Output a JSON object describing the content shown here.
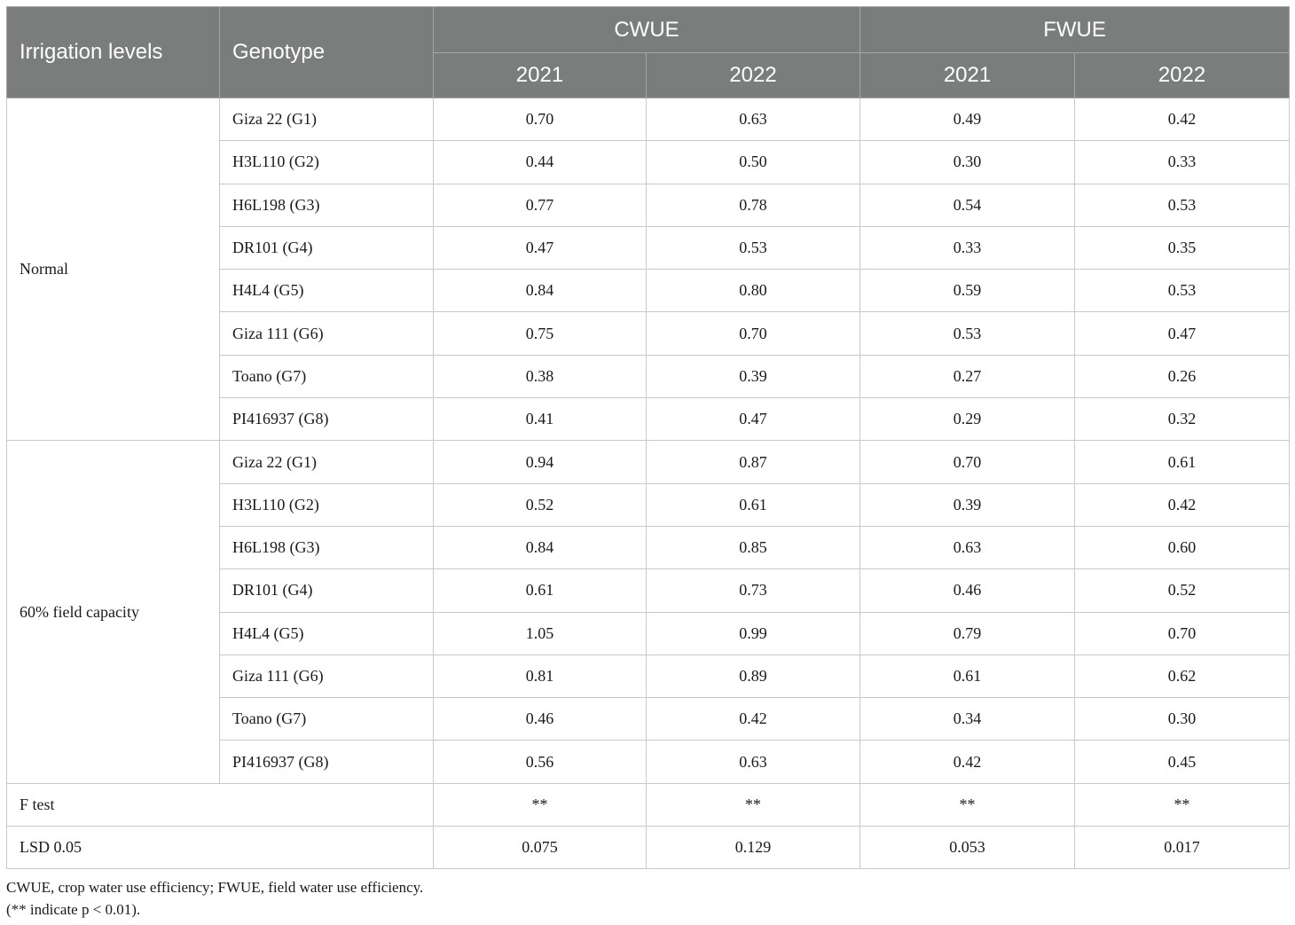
{
  "table": {
    "headers": {
      "irrigation_levels": "Irrigation levels",
      "genotype": "Genotype",
      "cwue": "CWUE",
      "fwue": "FWUE",
      "years": [
        "2021",
        "2022",
        "2021",
        "2022"
      ]
    },
    "groups": [
      {
        "label": "Normal",
        "rows": [
          {
            "genotype": "Giza 22 (G1)",
            "values": [
              "0.70",
              "0.63",
              "0.49",
              "0.42"
            ]
          },
          {
            "genotype": "H3L110 (G2)",
            "values": [
              "0.44",
              "0.50",
              "0.30",
              "0.33"
            ]
          },
          {
            "genotype": "H6L198 (G3)",
            "values": [
              "0.77",
              "0.78",
              "0.54",
              "0.53"
            ]
          },
          {
            "genotype": "DR101 (G4)",
            "values": [
              "0.47",
              "0.53",
              "0.33",
              "0.35"
            ]
          },
          {
            "genotype": "H4L4 (G5)",
            "values": [
              "0.84",
              "0.80",
              "0.59",
              "0.53"
            ]
          },
          {
            "genotype": "Giza 111 (G6)",
            "values": [
              "0.75",
              "0.70",
              "0.53",
              "0.47"
            ]
          },
          {
            "genotype": "Toano (G7)",
            "values": [
              "0.38",
              "0.39",
              "0.27",
              "0.26"
            ]
          },
          {
            "genotype": "PI416937 (G8)",
            "values": [
              "0.41",
              "0.47",
              "0.29",
              "0.32"
            ]
          }
        ]
      },
      {
        "label": "60% field capacity",
        "rows": [
          {
            "genotype": "Giza 22 (G1)",
            "values": [
              "0.94",
              "0.87",
              "0.70",
              "0.61"
            ]
          },
          {
            "genotype": "H3L110 (G2)",
            "values": [
              "0.52",
              "0.61",
              "0.39",
              "0.42"
            ]
          },
          {
            "genotype": "H6L198 (G3)",
            "values": [
              "0.84",
              "0.85",
              "0.63",
              "0.60"
            ]
          },
          {
            "genotype": "DR101 (G4)",
            "values": [
              "0.61",
              "0.73",
              "0.46",
              "0.52"
            ]
          },
          {
            "genotype": "H4L4 (G5)",
            "values": [
              "1.05",
              "0.99",
              "0.79",
              "0.70"
            ]
          },
          {
            "genotype": "Giza 111 (G6)",
            "values": [
              "0.81",
              "0.89",
              "0.61",
              "0.62"
            ]
          },
          {
            "genotype": "Toano (G7)",
            "values": [
              "0.46",
              "0.42",
              "0.34",
              "0.30"
            ]
          },
          {
            "genotype": "PI416937 (G8)",
            "values": [
              "0.56",
              "0.63",
              "0.42",
              "0.45"
            ]
          }
        ]
      }
    ],
    "summary_rows": [
      {
        "label": "F test",
        "values": [
          "**",
          "**",
          "**",
          "**"
        ]
      },
      {
        "label": "LSD 0.05",
        "values": [
          "0.075",
          "0.129",
          "0.053",
          "0.017"
        ]
      }
    ]
  },
  "footnotes": [
    "CWUE, crop water use efficiency; FWUE, field water use efficiency.",
    "(** indicate p < 0.01)."
  ],
  "colors": {
    "header_background": "#7b7c7c",
    "header_text": "#ffffff",
    "grid_line": "#c9c9c9"
  }
}
